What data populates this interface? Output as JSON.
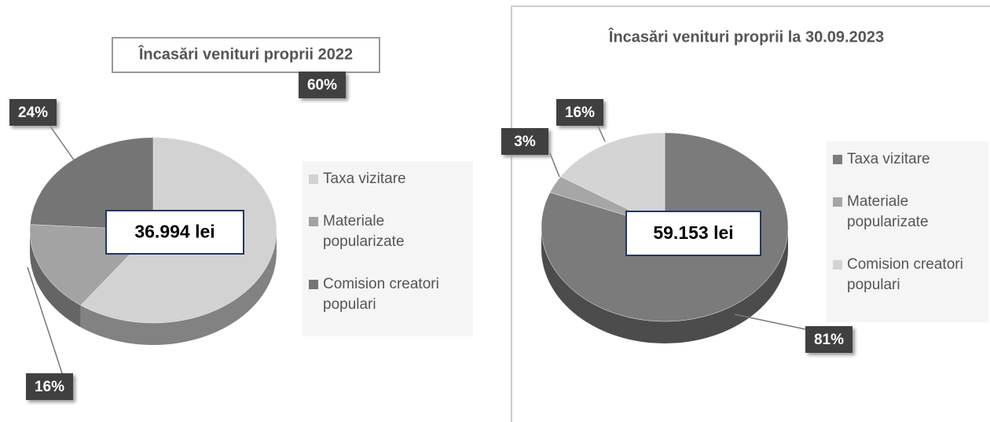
{
  "chart_data": [
    {
      "type": "pie",
      "title": "Încasări venituri proprii 2022",
      "center_label": "36.994 lei",
      "categories": [
        "Taxa vizitare",
        "Materiale popularizate",
        "Comision creatori populari"
      ],
      "values": [
        60,
        16,
        24
      ],
      "value_labels": [
        "60%",
        "16%",
        "24%"
      ],
      "colors": [
        "#d2d2d2",
        "#a3a3a3",
        "#757575"
      ]
    },
    {
      "type": "pie",
      "title": "Încasări venituri proprii la 30.09.2023",
      "center_label": "59.153 lei",
      "categories": [
        "Taxa vizitare",
        "Materiale popularizate",
        "Comision creatori populari"
      ],
      "values": [
        81,
        3,
        16
      ],
      "value_labels": [
        "81%",
        "3%",
        "16%"
      ],
      "colors": [
        "#7b7b7b",
        "#a6a6a6",
        "#d4d4d4"
      ]
    }
  ]
}
